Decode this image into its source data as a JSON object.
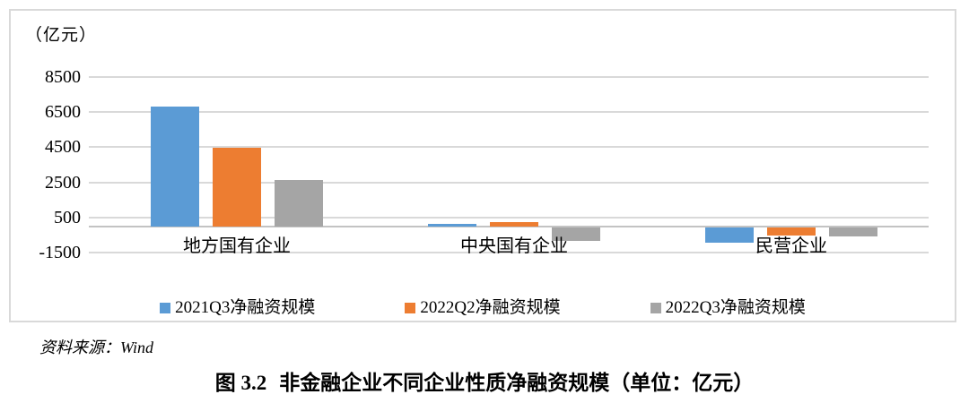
{
  "chart": {
    "unit_label": "（亿元）"
  },
  "source": "资料来源：Wind",
  "caption": {
    "label": "图 3.2",
    "text": "非金融企业不同企业性质净融资规模（单位：亿元）"
  },
  "chart_data": {
    "type": "bar",
    "title": "",
    "xlabel": "",
    "ylabel": "（亿元）",
    "unit": "亿元",
    "grid": true,
    "legend_position": "bottom",
    "axis_range": [
      -1500,
      8500
    ],
    "y_ticks": [
      8500,
      6500,
      4500,
      2500,
      500,
      -1500
    ],
    "categories": [
      "地方国有企业",
      "中央国有企业",
      "民营企业"
    ],
    "series": [
      {
        "name": "2021Q3净融资规模",
        "color": "#5B9BD5",
        "values": [
          6800,
          150,
          -900
        ]
      },
      {
        "name": "2022Q2净融资规模",
        "color": "#ED7D31",
        "values": [
          4450,
          250,
          -470
        ]
      },
      {
        "name": "2022Q3净融资规模",
        "color": "#A5A5A5",
        "values": [
          2650,
          -800,
          -550
        ]
      }
    ]
  }
}
